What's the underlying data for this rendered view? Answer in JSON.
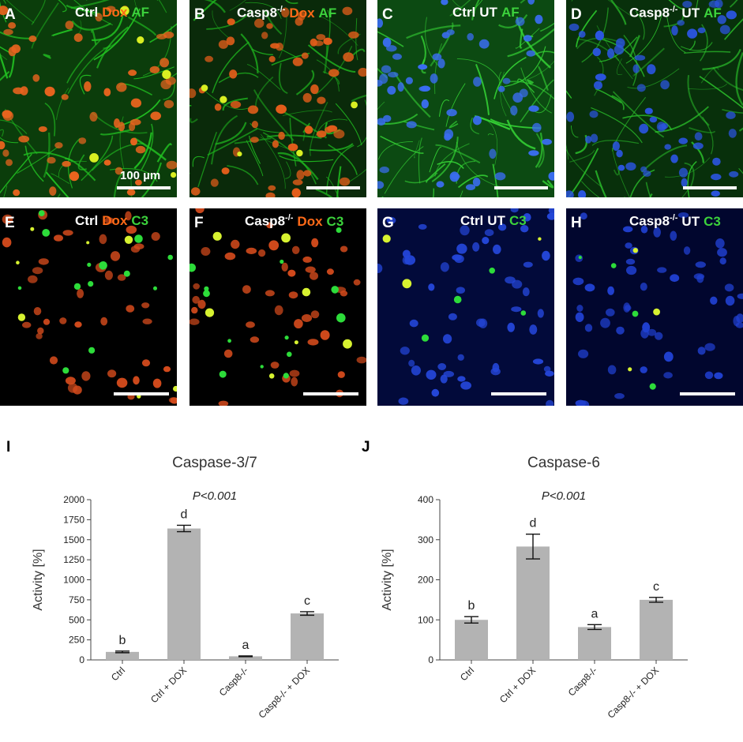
{
  "panels": [
    {
      "letter": "A",
      "parts": [
        {
          "t": "Ctrl",
          "c": "white"
        },
        {
          "t": "Dox",
          "c": "orange"
        },
        {
          "t": "AF",
          "c": "green"
        }
      ],
      "scale_label": "100 µm",
      "bg": "#0b3d0b",
      "fiber": "#22c322",
      "nucleus": "#e8641e",
      "type": "doxaf"
    },
    {
      "letter": "B",
      "parts": [
        {
          "t": "Casp8",
          "c": "white",
          "sup": "-/-"
        },
        {
          "t": "Dox",
          "c": "orange"
        },
        {
          "t": "AF",
          "c": "green"
        }
      ],
      "bg": "#0a2a0a",
      "fiber": "#1fb81f",
      "nucleus": "#e25d1a",
      "type": "doxaf"
    },
    {
      "letter": "C",
      "parts": [
        {
          "t": "Ctrl",
          "c": "white"
        },
        {
          "t": "UT",
          "c": "white"
        },
        {
          "t": "AF",
          "c": "green"
        }
      ],
      "bg": "#0c4a12",
      "fiber": "#35d435",
      "nucleus": "#3a6df0",
      "type": "utaf"
    },
    {
      "letter": "D",
      "parts": [
        {
          "t": "Casp8",
          "c": "white",
          "sup": "-/-"
        },
        {
          "t": "UT",
          "c": "white"
        },
        {
          "t": "AF",
          "c": "green"
        }
      ],
      "bg": "#08300b",
      "fiber": "#2bc12b",
      "nucleus": "#2b55e0",
      "type": "utaf"
    },
    {
      "letter": "E",
      "parts": [
        {
          "t": "Ctrl",
          "c": "white"
        },
        {
          "t": "Dox",
          "c": "orange"
        },
        {
          "t": "C3",
          "c": "green"
        }
      ],
      "bg": "#000000",
      "nucleus": "#d24a1c",
      "type": "doxc3"
    },
    {
      "letter": "F",
      "parts": [
        {
          "t": "Casp8",
          "c": "white",
          "sup": "-/-"
        },
        {
          "t": "Dox",
          "c": "orange"
        },
        {
          "t": "C3",
          "c": "green"
        }
      ],
      "bg": "#000000",
      "nucleus": "#d24a1c",
      "type": "doxc3"
    },
    {
      "letter": "G",
      "parts": [
        {
          "t": "Ctrl",
          "c": "white"
        },
        {
          "t": "UT",
          "c": "white"
        },
        {
          "t": "C3",
          "c": "green"
        }
      ],
      "bg": "#020a3a",
      "nucleus": "#2446d8",
      "type": "utc3"
    },
    {
      "letter": "H",
      "parts": [
        {
          "t": "Casp8",
          "c": "white",
          "sup": "-/-"
        },
        {
          "t": "UT",
          "c": "white"
        },
        {
          "t": "C3",
          "c": "green"
        }
      ],
      "bg": "#01062e",
      "nucleus": "#2040d0",
      "type": "utc3"
    }
  ],
  "chart_data": [
    {
      "letter": "I",
      "type": "bar",
      "title": "Caspase-3/7",
      "subtitle": "P<0.001",
      "ylabel": "Activity [%]",
      "categories": [
        "Ctrl",
        "Ctrl + DOX",
        "Casp8-/-",
        "Casp8-/- + DOX"
      ],
      "values": [
        100,
        1640,
        45,
        580
      ],
      "errors": [
        10,
        40,
        5,
        22
      ],
      "letters": [
        "b",
        "d",
        "a",
        "c"
      ],
      "ylim": [
        0,
        2000
      ],
      "yticks": [
        0,
        250,
        500,
        750,
        1000,
        1250,
        1500,
        1750,
        2000
      ],
      "bar_color": "#b3b3b3"
    },
    {
      "letter": "J",
      "type": "bar",
      "title": "Caspase-6",
      "subtitle": "P<0.001",
      "ylabel": "Activity [%]",
      "categories": [
        "Ctrl",
        "Ctrl + DOX",
        "Casp8-/-",
        "Casp8-/- + DOX"
      ],
      "values": [
        100,
        283,
        82,
        150
      ],
      "errors": [
        8,
        31,
        6,
        6
      ],
      "letters": [
        "b",
        "d",
        "a",
        "c"
      ],
      "ylim": [
        0,
        400
      ],
      "yticks": [
        0,
        100,
        200,
        300,
        400
      ],
      "bar_color": "#b3b3b3"
    }
  ]
}
